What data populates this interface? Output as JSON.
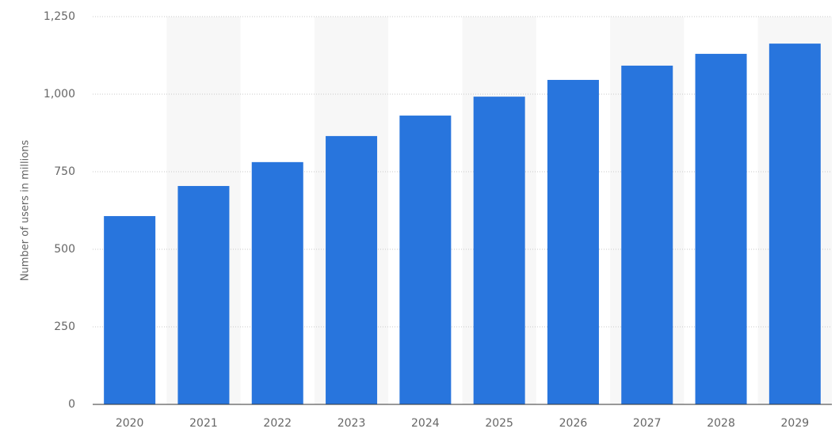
{
  "chart_data": {
    "type": "bar",
    "y_label": "Number of users in millions",
    "categories": [
      "2020",
      "2021",
      "2022",
      "2023",
      "2024",
      "2025",
      "2026",
      "2027",
      "2028",
      "2029"
    ],
    "values": [
      607,
      704,
      781,
      865,
      931,
      992,
      1046,
      1092,
      1130,
      1163
    ],
    "color": "#2875dd",
    "ylim": [
      0,
      1250
    ],
    "yticks": [
      0,
      250,
      500,
      750,
      {
        "value": 1000,
        "label": "1,000"
      },
      {
        "value": 1250,
        "label": "1,250"
      }
    ],
    "grid": true
  }
}
